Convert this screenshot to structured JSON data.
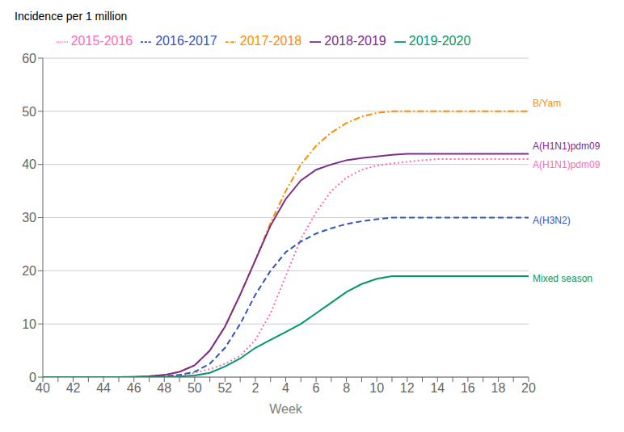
{
  "chart_data": {
    "type": "line",
    "x_label": "Week",
    "y_label": "Incidence per 1 million",
    "categories": [
      "40",
      null,
      "42",
      null,
      "44",
      null,
      "46",
      null,
      "48",
      null,
      "50",
      null,
      "52",
      null,
      "2",
      null,
      "4",
      null,
      "6",
      null,
      "8",
      null,
      "10",
      null,
      "12",
      null,
      "14",
      null,
      "16",
      null,
      "18",
      null,
      "20"
    ],
    "series": [
      {
        "name": "2015-2016",
        "color": "#FF69B4",
        "line_style": "dotted",
        "values": [
          0.0,
          0.0,
          0.0,
          0.0,
          0.0,
          0.0,
          0.05,
          0.1,
          0.2,
          0.4,
          0.8,
          1.5,
          2.5,
          4.0,
          7.0,
          12.0,
          19.0,
          26.0,
          31.0,
          35.0,
          37.5,
          39.0,
          39.8,
          40.2,
          40.5,
          40.8,
          41.0,
          41.0,
          41.0,
          41.0,
          41.0,
          41.0,
          41.0
        ]
      },
      {
        "name": "2016-2017",
        "color": "#3355BB",
        "line_style": "dashed",
        "values": [
          0.0,
          0.0,
          0.0,
          0.0,
          0.0,
          0.0,
          0.0,
          0.05,
          0.15,
          0.4,
          1.0,
          2.5,
          5.5,
          10.0,
          15.5,
          20.0,
          23.5,
          25.5,
          27.0,
          28.0,
          28.8,
          29.3,
          29.7,
          30.0,
          30.0,
          30.0,
          30.0,
          30.0,
          30.0,
          30.0,
          30.0,
          30.0,
          30.0
        ]
      },
      {
        "name": "2017-2018",
        "color": "#FF8C00",
        "line_style": "dashdot",
        "values": [
          0.0,
          0.0,
          0.0,
          0.0,
          0.0,
          0.0,
          0.05,
          0.15,
          0.4,
          1.0,
          2.2,
          5.0,
          9.5,
          15.5,
          22.0,
          29.0,
          35.0,
          40.0,
          43.5,
          46.0,
          47.8,
          49.0,
          49.7,
          50.0,
          50.0,
          50.0,
          50.0,
          50.0,
          50.0,
          50.0,
          50.0,
          50.0,
          50.0
        ]
      },
      {
        "name": "2018-2019",
        "color": "#7B2D8B",
        "line_style": "solid",
        "values": [
          0.0,
          0.0,
          0.0,
          0.0,
          0.0,
          0.0,
          0.05,
          0.15,
          0.4,
          1.0,
          2.2,
          5.0,
          9.5,
          15.5,
          22.0,
          28.5,
          33.5,
          37.0,
          39.0,
          40.0,
          40.8,
          41.2,
          41.5,
          41.8,
          42.0,
          42.0,
          42.0,
          42.0,
          42.0,
          42.0,
          42.0,
          42.0,
          42.0
        ]
      },
      {
        "name": "2019-2020",
        "color": "#009966",
        "line_style": "solid",
        "values": [
          0.0,
          0.0,
          0.0,
          0.0,
          0.0,
          0.0,
          0.0,
          0.0,
          0.05,
          0.1,
          0.3,
          0.8,
          2.0,
          3.5,
          5.5,
          7.0,
          8.5,
          10.0,
          12.0,
          14.0,
          16.0,
          17.5,
          18.5,
          19.0,
          19.0,
          19.0,
          19.0,
          19.0,
          19.0,
          19.0,
          19.0,
          19.0,
          19.0
        ]
      }
    ],
    "annotations": [
      {
        "text": "B/Yam",
        "color": "#FF8C00",
        "y": 51.5
      },
      {
        "text": "A(H1N1)pdm09",
        "color": "#7B2D8B",
        "y": 43.5
      },
      {
        "text": "A(H1N1)pdm09",
        "color": "#FF69B4",
        "y": 40.0
      },
      {
        "text": "A(H3N2)",
        "color": "#3355BB",
        "y": 29.5
      },
      {
        "text": "Mixed season",
        "color": "#009966",
        "y": 18.5
      }
    ],
    "ylim": [
      0,
      60
    ],
    "yticks": [
      0,
      10,
      20,
      30,
      40,
      50,
      60
    ],
    "grid": true,
    "legend": "top"
  }
}
